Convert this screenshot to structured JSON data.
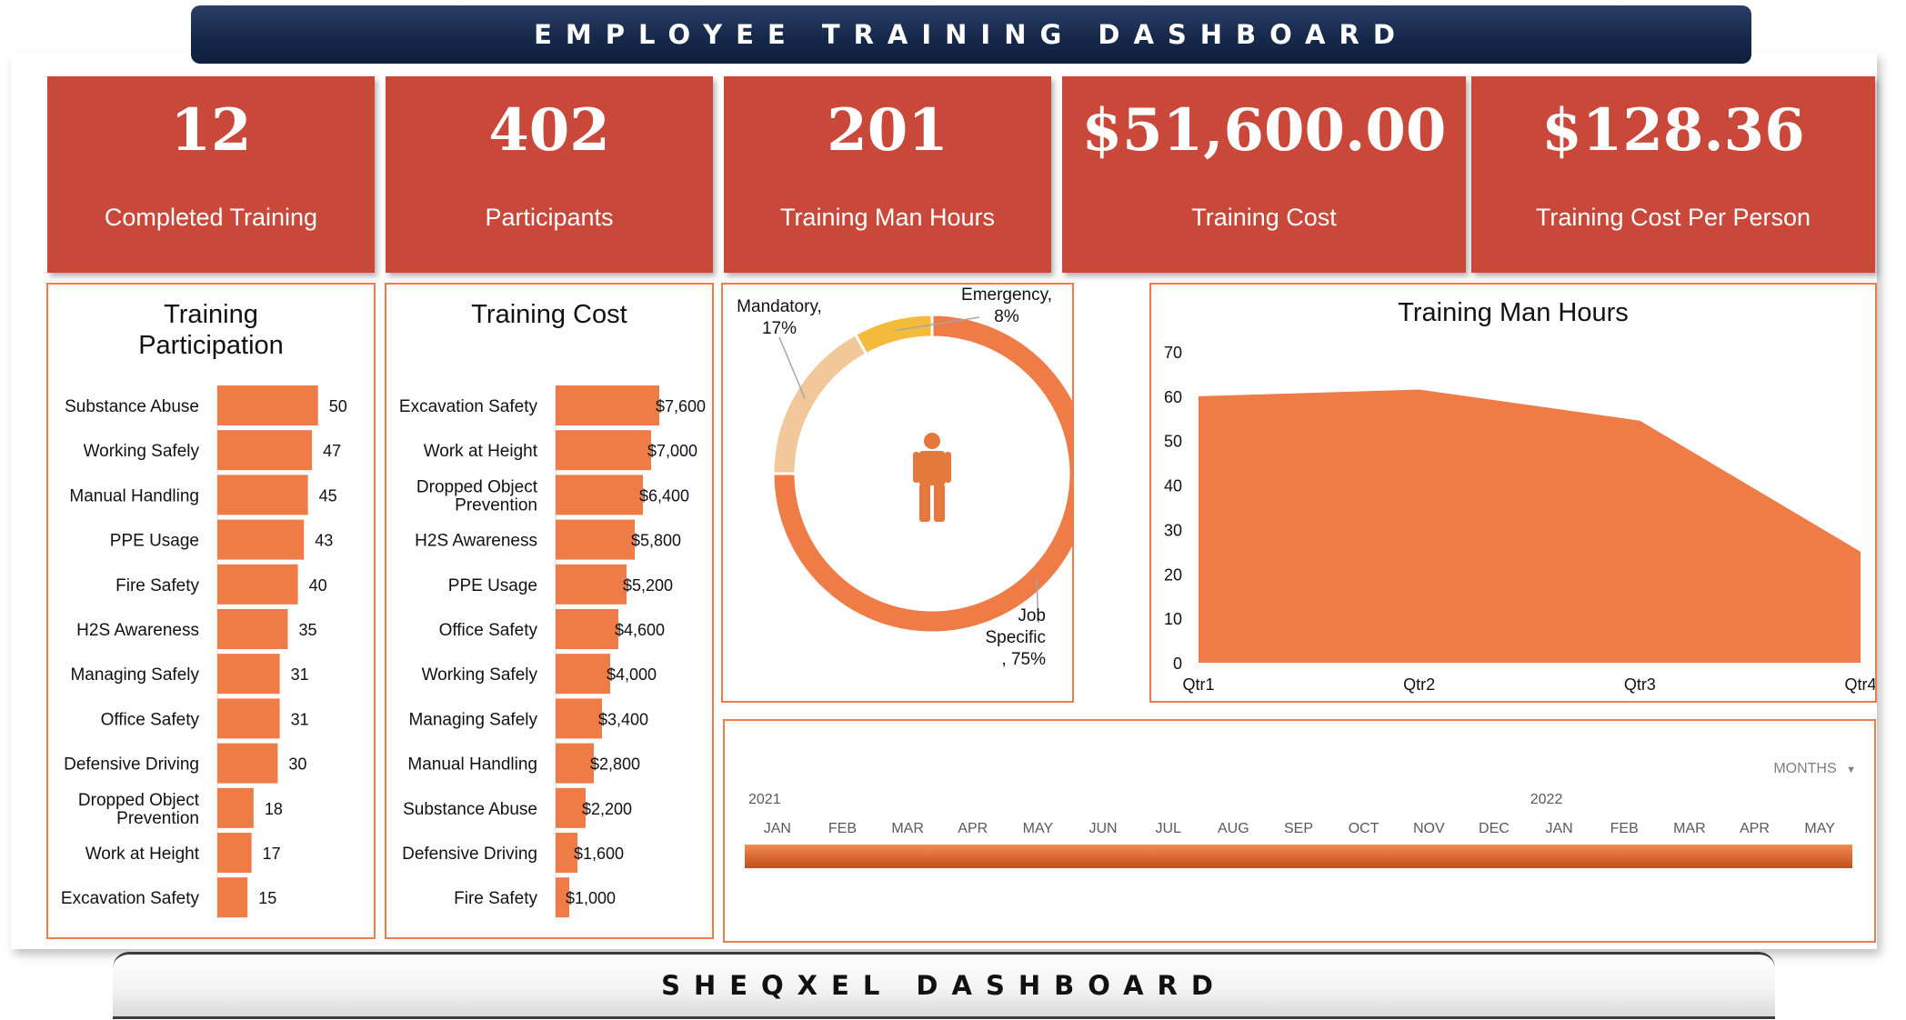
{
  "header": {
    "title": "EMPLOYEE TRAINING DASHBOARD"
  },
  "footer": {
    "title": "SHEQXEL DASHBOARD"
  },
  "kpis": [
    {
      "value": "12",
      "label": "Completed Training"
    },
    {
      "value": "402",
      "label": "Participants"
    },
    {
      "value": "201",
      "label": "Training Man Hours"
    },
    {
      "value": "$51,600.00",
      "label": "Training Cost"
    },
    {
      "value": "$128.36",
      "label": "Training Cost Per Person"
    }
  ],
  "colors": {
    "accent": "#ef7b47",
    "kpi_bg": "#c9483a",
    "header_bg": "#16294b",
    "donut_light": "#f2c89a",
    "donut_yellow": "#f4bb3a"
  },
  "chart_data": [
    {
      "type": "bar",
      "orientation": "horizontal",
      "title": "Training Participation",
      "title_lines": [
        "Training",
        "Participation"
      ],
      "categories": [
        "Substance Abuse",
        "Working Safely",
        "Manual Handling",
        "PPE Usage",
        "Fire Safety",
        "H2S Awareness",
        "Managing Safely",
        "Office Safety",
        "Defensive Driving",
        "Dropped Object Prevention",
        "Work at Height",
        "Excavation Safety"
      ],
      "category_lines": [
        [
          "Substance Abuse"
        ],
        [
          "Working Safely"
        ],
        [
          "Manual Handling"
        ],
        [
          "PPE Usage"
        ],
        [
          "Fire Safety"
        ],
        [
          "H2S Awareness"
        ],
        [
          "Managing Safely"
        ],
        [
          "Office Safety"
        ],
        [
          "Defensive Driving"
        ],
        [
          "Dropped Object",
          "Prevention"
        ],
        [
          "Work at Height"
        ],
        [
          "Excavation Safety"
        ]
      ],
      "values": [
        50,
        47,
        45,
        43,
        40,
        35,
        31,
        31,
        30,
        18,
        17,
        15
      ],
      "data_labels": [
        "50",
        "47",
        "45",
        "43",
        "40",
        "35",
        "31",
        "31",
        "30",
        "18",
        "17",
        "15"
      ],
      "xlim": [
        0,
        56
      ]
    },
    {
      "type": "bar",
      "orientation": "horizontal",
      "title": "Training Cost",
      "title_lines": [
        "Training Cost"
      ],
      "categories": [
        "Excavation Safety",
        "Work at Height",
        "Dropped Object Prevention",
        "H2S Awareness",
        "PPE Usage",
        "Office Safety",
        "Working Safely",
        "Managing Safely",
        "Manual Handling",
        "Substance Abuse",
        "Defensive Driving",
        "Fire Safety"
      ],
      "category_lines": [
        [
          "Excavation Safety"
        ],
        [
          "Work at Height"
        ],
        [
          "Dropped Object",
          "Prevention"
        ],
        [
          "H2S Awareness"
        ],
        [
          "PPE Usage"
        ],
        [
          "Office Safety"
        ],
        [
          "Working Safely"
        ],
        [
          "Managing Safely"
        ],
        [
          "Manual Handling"
        ],
        [
          "Substance Abuse"
        ],
        [
          "Defensive Driving"
        ],
        [
          "Fire Safety"
        ]
      ],
      "values": [
        7600,
        7000,
        6400,
        5800,
        5200,
        4600,
        4000,
        3400,
        2800,
        2200,
        1600,
        1000
      ],
      "data_labels": [
        "$7,600",
        "$7,000",
        "$6,400",
        "$5,800",
        "$5,200",
        "$4,600",
        "$4,000",
        "$3,400",
        "$2,800",
        "$2,200",
        "$1,600",
        "$1,000"
      ],
      "xlim": [
        0,
        7600
      ]
    },
    {
      "type": "pie",
      "style": "donut",
      "slices": [
        {
          "label_lines": [
            "Job",
            "Specific",
            ", 75%"
          ],
          "value": 75,
          "color": "#ef7b47"
        },
        {
          "label_lines": [
            "Mandatory,",
            "17%"
          ],
          "value": 17,
          "color": "#f2c89a"
        },
        {
          "label_lines": [
            "Emergency,",
            "8%"
          ],
          "value": 8,
          "color": "#f4bb3a"
        }
      ],
      "center_icon": "person-icon"
    },
    {
      "type": "area",
      "title": "Training Man Hours",
      "categories": [
        "Qtr1",
        "Qtr2",
        "Qtr3",
        "Qtr4"
      ],
      "values": [
        60,
        61.5,
        54.5,
        25
      ],
      "ylim": [
        0,
        70
      ],
      "yticks": [
        0,
        10,
        20,
        30,
        40,
        50,
        60,
        70
      ],
      "color": "#ef7b47"
    }
  ],
  "timeline": {
    "level_label": "MONTHS",
    "years": [
      {
        "label": "2021",
        "start_index": 0
      },
      {
        "label": "2022",
        "start_index": 12
      }
    ],
    "months": [
      "JAN",
      "FEB",
      "MAR",
      "APR",
      "MAY",
      "JUN",
      "JUL",
      "AUG",
      "SEP",
      "OCT",
      "NOV",
      "DEC",
      "JAN",
      "FEB",
      "MAR",
      "APR",
      "MAY"
    ]
  }
}
